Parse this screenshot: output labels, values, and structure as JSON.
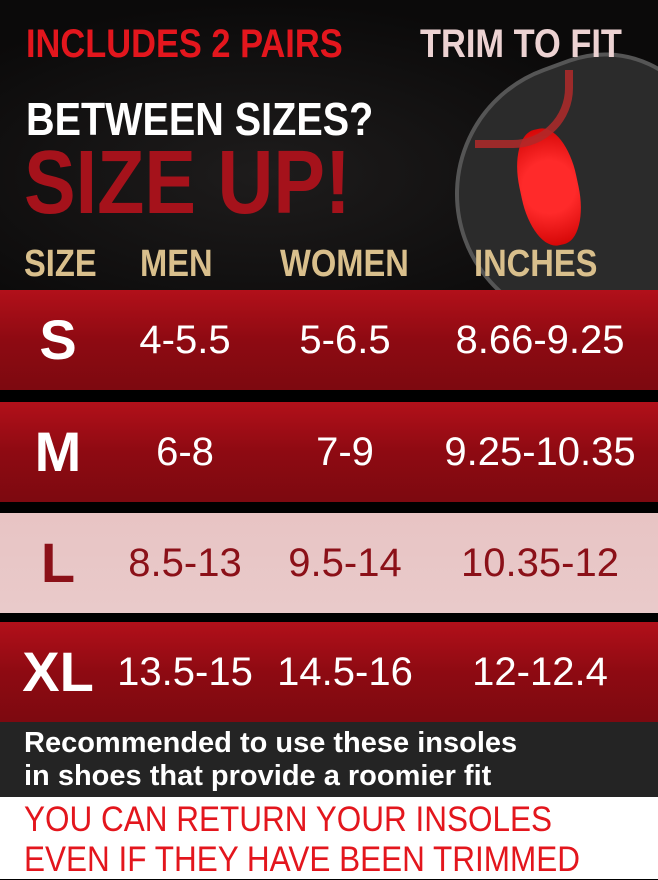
{
  "header": {
    "includes": "INCLUDES 2 PAIRS",
    "trim": "TRIM TO FIT",
    "between": "BETWEEN SIZES?",
    "size_up": "SIZE UP!"
  },
  "table": {
    "columns": [
      "SIZE",
      "MEN",
      "WOMEN",
      "INCHES"
    ],
    "rows": [
      {
        "size": "S",
        "men": "4-5.5",
        "women": "5-6.5",
        "inches": "8.66-9.25",
        "style": "red"
      },
      {
        "size": "M",
        "men": "6-8",
        "women": "7-9",
        "inches": "9.25-10.35",
        "style": "red"
      },
      {
        "size": "L",
        "men": "8.5-13",
        "women": "9.5-14",
        "inches": "10.35-12",
        "style": "light"
      },
      {
        "size": "XL",
        "men": "13.5-15",
        "women": "14.5-16",
        "inches": "12-12.4",
        "style": "red"
      }
    ]
  },
  "note": {
    "line1": "Recommended to use these insoles",
    "line2": "in shoes that provide a roomier fit"
  },
  "returns": {
    "line1": "YOU CAN RETURN YOUR INSOLES",
    "line2": "EVEN IF THEY HAVE BEEN TRIMMED"
  },
  "colors": {
    "brand_red": "#e3161d",
    "dark_red": "#a5121b",
    "gold": "#d9bf8c",
    "light_row": "#e8c4c4"
  }
}
